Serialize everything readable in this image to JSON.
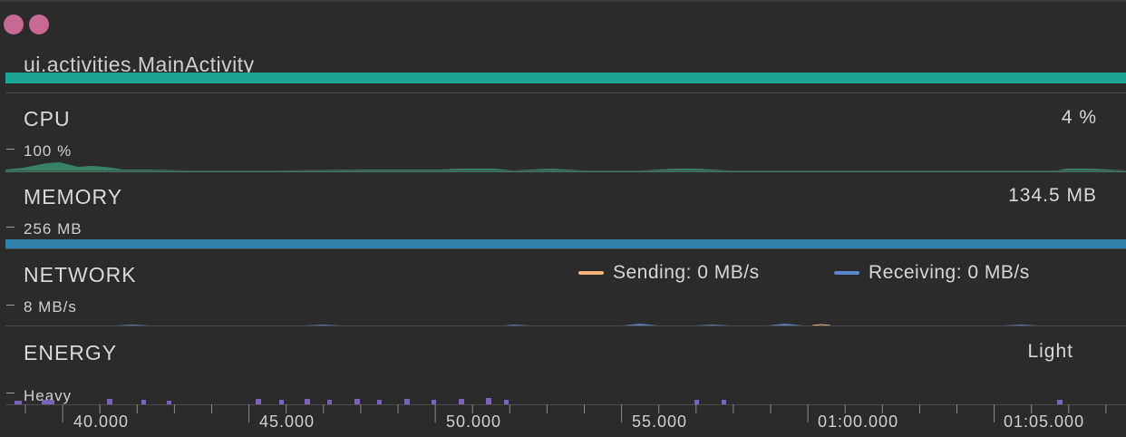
{
  "activity": {
    "title": "ui.activities.MainActivity",
    "bar_color": "#1ba592"
  },
  "cpu": {
    "title": "CPU",
    "value": "4 %",
    "scale": "100 %",
    "color": "#3d8f6e"
  },
  "memory": {
    "title": "MEMORY",
    "value": "134.5 MB",
    "scale": "256 MB",
    "color": "#2f7fa8"
  },
  "network": {
    "title": "NETWORK",
    "scale": "8 MB/s",
    "sending_label": "Sending: 0 MB/s",
    "receiving_label": "Receiving: 0 MB/s",
    "sending_color": "#f4b57a",
    "receiving_color": "#5b86c8"
  },
  "energy": {
    "title": "ENERGY",
    "value": "Light",
    "scale": "Heavy",
    "color": "#7a63b8"
  },
  "timeline": {
    "labels": [
      "40.000",
      "45.000",
      "50.000",
      "55.000",
      "01:00.000",
      "01:05.000"
    ]
  }
}
